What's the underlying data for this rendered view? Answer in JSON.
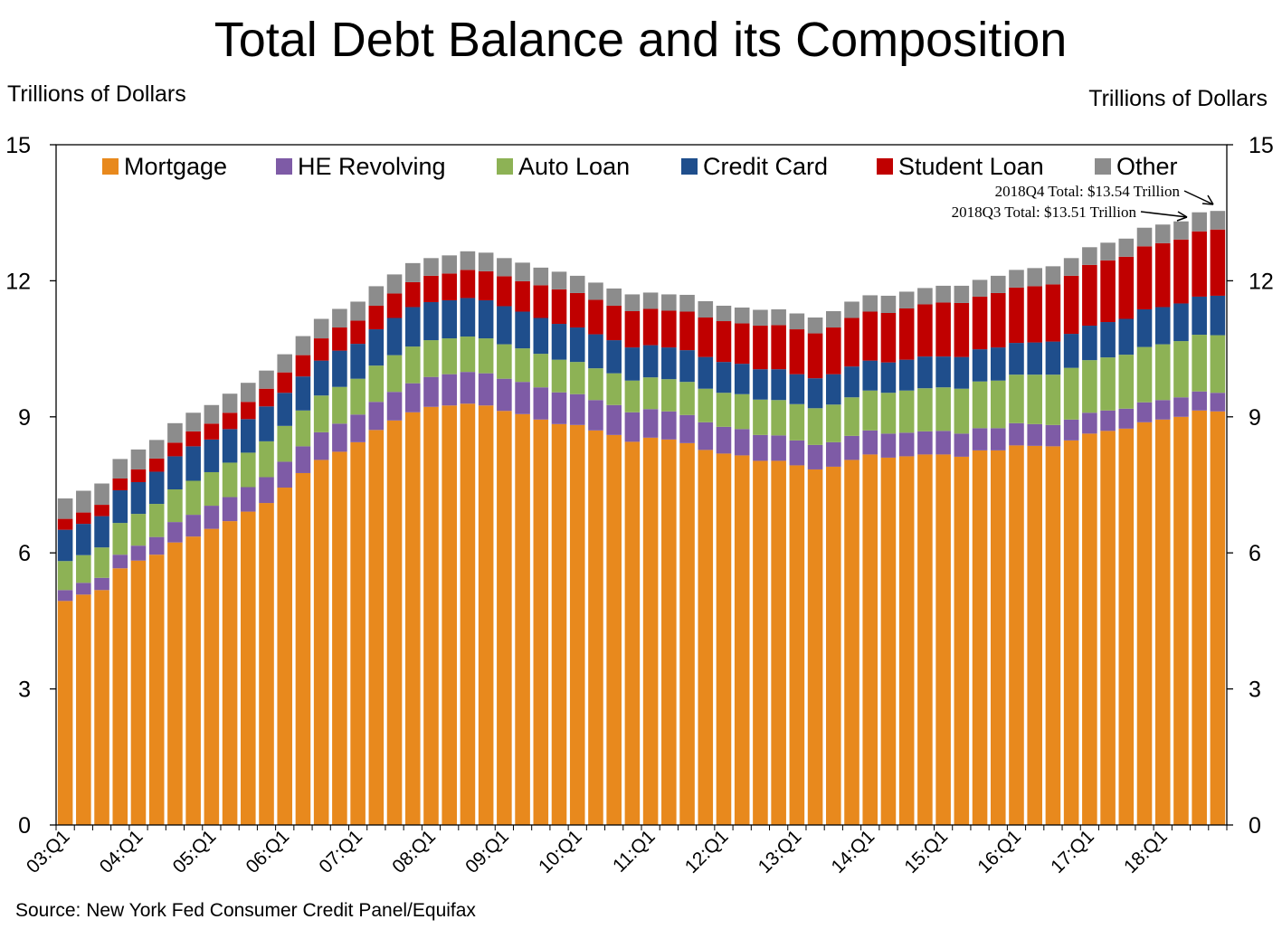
{
  "chart_data": {
    "type": "bar",
    "stacked": true,
    "title": "Total Debt Balance and its Composition",
    "ylabel_left": "Trillions of Dollars",
    "ylabel_right": "Trillions of Dollars",
    "ylim": [
      0,
      15
    ],
    "yticks": [
      0,
      3,
      6,
      9,
      12,
      15
    ],
    "x_tick_labels": [
      "03:Q1",
      "04:Q1",
      "05:Q1",
      "06:Q1",
      "07:Q1",
      "08:Q1",
      "09:Q1",
      "10:Q1",
      "11:Q1",
      "12:Q1",
      "13:Q1",
      "14:Q1",
      "15:Q1",
      "16:Q1",
      "17:Q1",
      "18:Q1"
    ],
    "source": "Source: New York Fed Consumer Credit Panel/Equifax",
    "legend_position": "top",
    "annotations": [
      {
        "text": "2018Q4 Total: $13.54 Trillion",
        "points_to": "18:Q4"
      },
      {
        "text": "2018Q3 Total: $13.51 Trillion",
        "points_to": "18:Q3"
      }
    ],
    "categories": [
      "03:Q1",
      "03:Q2",
      "03:Q3",
      "03:Q4",
      "04:Q1",
      "04:Q2",
      "04:Q3",
      "04:Q4",
      "05:Q1",
      "05:Q2",
      "05:Q3",
      "05:Q4",
      "06:Q1",
      "06:Q2",
      "06:Q3",
      "06:Q4",
      "07:Q1",
      "07:Q2",
      "07:Q3",
      "07:Q4",
      "08:Q1",
      "08:Q2",
      "08:Q3",
      "08:Q4",
      "09:Q1",
      "09:Q2",
      "09:Q3",
      "09:Q4",
      "10:Q1",
      "10:Q2",
      "10:Q3",
      "10:Q4",
      "11:Q1",
      "11:Q2",
      "11:Q3",
      "11:Q4",
      "12:Q1",
      "12:Q2",
      "12:Q3",
      "12:Q4",
      "13:Q1",
      "13:Q2",
      "13:Q3",
      "13:Q4",
      "14:Q1",
      "14:Q2",
      "14:Q3",
      "14:Q4",
      "15:Q1",
      "15:Q2",
      "15:Q3",
      "15:Q4",
      "16:Q1",
      "16:Q2",
      "16:Q3",
      "16:Q4",
      "17:Q1",
      "17:Q2",
      "17:Q3",
      "17:Q4",
      "18:Q1",
      "18:Q2",
      "18:Q3",
      "18:Q4"
    ],
    "series": [
      {
        "name": "Mortgage",
        "color": "#E8891D",
        "values": [
          4.94,
          5.08,
          5.18,
          5.66,
          5.83,
          5.96,
          6.23,
          6.36,
          6.53,
          6.7,
          6.91,
          7.1,
          7.44,
          7.76,
          8.05,
          8.23,
          8.44,
          8.71,
          8.92,
          9.1,
          9.22,
          9.25,
          9.29,
          9.25,
          9.13,
          9.06,
          8.94,
          8.84,
          8.82,
          8.7,
          8.6,
          8.45,
          8.54,
          8.5,
          8.42,
          8.27,
          8.19,
          8.15,
          8.03,
          8.03,
          7.93,
          7.84,
          7.9,
          8.05,
          8.17,
          8.1,
          8.13,
          8.17,
          8.17,
          8.12,
          8.26,
          8.26,
          8.37,
          8.36,
          8.35,
          8.48,
          8.63,
          8.69,
          8.74,
          8.88,
          8.94,
          9.0,
          9.14,
          9.12
        ]
      },
      {
        "name": "HE Revolving",
        "color": "#7E5BA6",
        "values": [
          0.24,
          0.26,
          0.27,
          0.3,
          0.33,
          0.39,
          0.45,
          0.48,
          0.51,
          0.53,
          0.54,
          0.57,
          0.57,
          0.59,
          0.61,
          0.62,
          0.61,
          0.62,
          0.63,
          0.64,
          0.66,
          0.69,
          0.7,
          0.71,
          0.71,
          0.71,
          0.71,
          0.7,
          0.68,
          0.67,
          0.66,
          0.65,
          0.63,
          0.62,
          0.62,
          0.61,
          0.59,
          0.58,
          0.57,
          0.56,
          0.55,
          0.54,
          0.54,
          0.53,
          0.53,
          0.53,
          0.52,
          0.51,
          0.52,
          0.51,
          0.49,
          0.49,
          0.49,
          0.48,
          0.47,
          0.46,
          0.46,
          0.45,
          0.44,
          0.44,
          0.43,
          0.43,
          0.42,
          0.41
        ]
      },
      {
        "name": "Auto Loan",
        "color": "#8DB255",
        "values": [
          0.64,
          0.61,
          0.67,
          0.7,
          0.7,
          0.73,
          0.72,
          0.75,
          0.74,
          0.76,
          0.76,
          0.79,
          0.79,
          0.79,
          0.81,
          0.81,
          0.79,
          0.8,
          0.81,
          0.81,
          0.81,
          0.79,
          0.78,
          0.77,
          0.76,
          0.74,
          0.74,
          0.72,
          0.71,
          0.7,
          0.7,
          0.7,
          0.7,
          0.71,
          0.73,
          0.74,
          0.75,
          0.77,
          0.78,
          0.78,
          0.8,
          0.81,
          0.83,
          0.85,
          0.88,
          0.9,
          0.93,
          0.95,
          0.96,
          0.99,
          1.03,
          1.05,
          1.07,
          1.09,
          1.11,
          1.14,
          1.16,
          1.17,
          1.19,
          1.22,
          1.23,
          1.24,
          1.25,
          1.27
        ]
      },
      {
        "name": "Credit Card",
        "color": "#1F4E8C",
        "values": [
          0.69,
          0.69,
          0.69,
          0.72,
          0.7,
          0.71,
          0.73,
          0.76,
          0.72,
          0.74,
          0.74,
          0.77,
          0.73,
          0.75,
          0.77,
          0.8,
          0.77,
          0.8,
          0.82,
          0.87,
          0.84,
          0.84,
          0.85,
          0.84,
          0.84,
          0.81,
          0.79,
          0.79,
          0.76,
          0.75,
          0.73,
          0.73,
          0.71,
          0.7,
          0.7,
          0.7,
          0.68,
          0.67,
          0.67,
          0.68,
          0.66,
          0.66,
          0.67,
          0.68,
          0.66,
          0.67,
          0.68,
          0.7,
          0.68,
          0.7,
          0.71,
          0.73,
          0.7,
          0.71,
          0.73,
          0.75,
          0.76,
          0.78,
          0.79,
          0.83,
          0.82,
          0.83,
          0.84,
          0.87
        ]
      },
      {
        "name": "Student Loan",
        "color": "#C00000",
        "values": [
          0.24,
          0.25,
          0.25,
          0.26,
          0.28,
          0.29,
          0.3,
          0.33,
          0.35,
          0.36,
          0.38,
          0.39,
          0.45,
          0.47,
          0.49,
          0.51,
          0.51,
          0.52,
          0.54,
          0.55,
          0.58,
          0.59,
          0.62,
          0.64,
          0.66,
          0.67,
          0.72,
          0.76,
          0.76,
          0.76,
          0.76,
          0.8,
          0.8,
          0.81,
          0.85,
          0.87,
          0.9,
          0.89,
          0.96,
          0.97,
          0.99,
          0.99,
          1.03,
          1.07,
          1.08,
          1.09,
          1.13,
          1.15,
          1.19,
          1.19,
          1.16,
          1.2,
          1.22,
          1.24,
          1.26,
          1.28,
          1.34,
          1.36,
          1.37,
          1.39,
          1.41,
          1.41,
          1.44,
          1.46
        ]
      },
      {
        "name": "Other",
        "color": "#8C8C8C",
        "values": [
          0.45,
          0.48,
          0.47,
          0.43,
          0.44,
          0.41,
          0.43,
          0.41,
          0.41,
          0.42,
          0.42,
          0.4,
          0.4,
          0.42,
          0.43,
          0.41,
          0.42,
          0.43,
          0.42,
          0.42,
          0.39,
          0.4,
          0.41,
          0.41,
          0.4,
          0.41,
          0.39,
          0.39,
          0.38,
          0.38,
          0.38,
          0.37,
          0.36,
          0.36,
          0.37,
          0.36,
          0.34,
          0.35,
          0.35,
          0.35,
          0.35,
          0.35,
          0.36,
          0.36,
          0.36,
          0.38,
          0.37,
          0.36,
          0.37,
          0.38,
          0.37,
          0.38,
          0.39,
          0.4,
          0.4,
          0.39,
          0.39,
          0.39,
          0.4,
          0.41,
          0.41,
          0.4,
          0.42,
          0.41
        ]
      }
    ]
  }
}
